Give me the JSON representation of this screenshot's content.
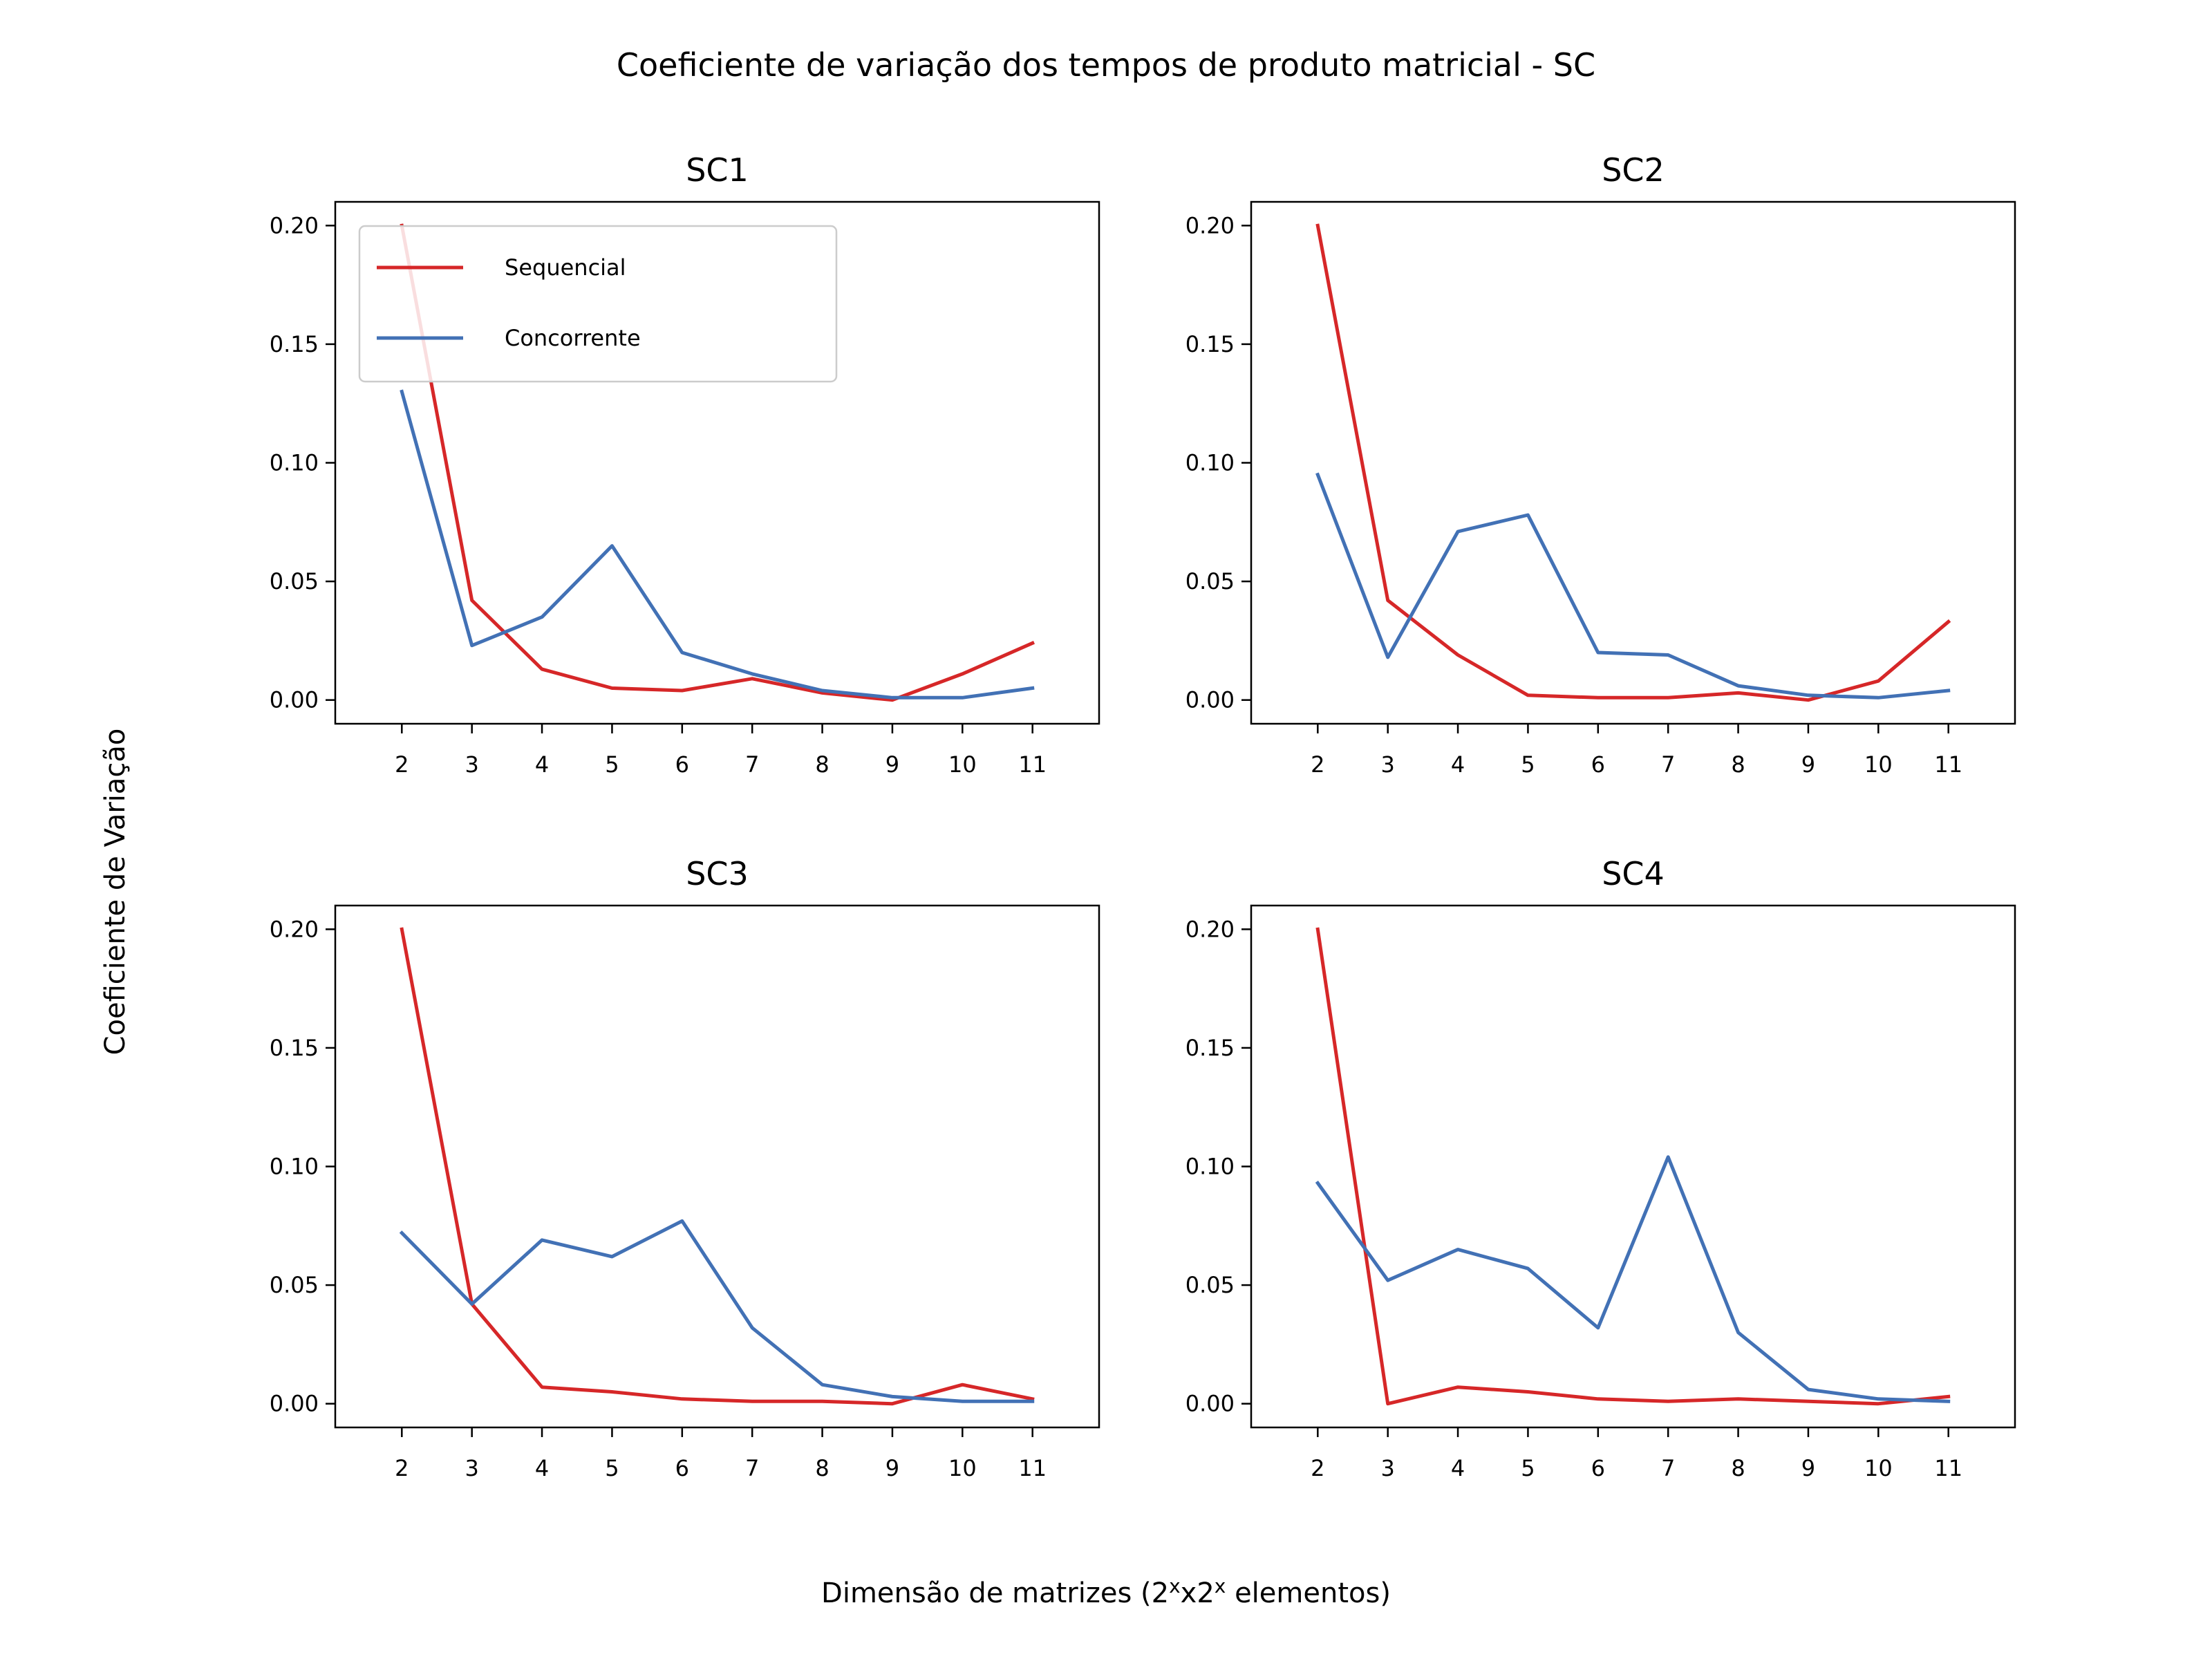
{
  "figure": {
    "title": "Coeficiente de variação dos tempos de produto matricial - SC",
    "ylabel": "Coeficiente de Variação",
    "xlabel": {
      "prefix": "Dimensão de matrizes (2",
      "sup1": "x",
      "mid": "x2",
      "sup2": "x",
      "suffix": " elementos)"
    }
  },
  "colors": {
    "Sequencial": "#d62728",
    "Concorrente": "#4271b5"
  },
  "chart_data": [
    {
      "type": "line",
      "title": "SC1",
      "x": [
        2,
        3,
        4,
        5,
        6,
        7,
        8,
        9,
        10,
        11
      ],
      "ylim": [
        -0.01,
        0.21
      ],
      "yticks": [
        "0.00",
        "0.05",
        "0.10",
        "0.15",
        "0.20"
      ],
      "legend": "upper-left",
      "series": [
        {
          "name": "Sequencial",
          "values": [
            0.2,
            0.042,
            0.013,
            0.005,
            0.004,
            0.009,
            0.003,
            0.0,
            0.011,
            0.024
          ]
        },
        {
          "name": "Concorrente",
          "values": [
            0.13,
            0.023,
            0.035,
            0.065,
            0.02,
            0.011,
            0.004,
            0.001,
            0.001,
            0.005
          ]
        }
      ]
    },
    {
      "type": "line",
      "title": "SC2",
      "x": [
        2,
        3,
        4,
        5,
        6,
        7,
        8,
        9,
        10,
        11
      ],
      "ylim": [
        -0.01,
        0.21
      ],
      "yticks": [
        "0.00",
        "0.05",
        "0.10",
        "0.15",
        "0.20"
      ],
      "series": [
        {
          "name": "Sequencial",
          "values": [
            0.2,
            0.042,
            0.019,
            0.002,
            0.001,
            0.001,
            0.003,
            0.0,
            0.008,
            0.033
          ]
        },
        {
          "name": "Concorrente",
          "values": [
            0.095,
            0.018,
            0.071,
            0.078,
            0.02,
            0.019,
            0.006,
            0.002,
            0.001,
            0.004
          ]
        }
      ]
    },
    {
      "type": "line",
      "title": "SC3",
      "x": [
        2,
        3,
        4,
        5,
        6,
        7,
        8,
        9,
        10,
        11
      ],
      "ylim": [
        -0.01,
        0.21
      ],
      "yticks": [
        "0.00",
        "0.05",
        "0.10",
        "0.15",
        "0.20"
      ],
      "series": [
        {
          "name": "Sequencial",
          "values": [
            0.2,
            0.042,
            0.007,
            0.005,
            0.002,
            0.001,
            0.001,
            0.0,
            0.008,
            0.002
          ]
        },
        {
          "name": "Concorrente",
          "values": [
            0.072,
            0.042,
            0.069,
            0.062,
            0.077,
            0.032,
            0.008,
            0.003,
            0.001,
            0.001
          ]
        }
      ]
    },
    {
      "type": "line",
      "title": "SC4",
      "x": [
        2,
        3,
        4,
        5,
        6,
        7,
        8,
        9,
        10,
        11
      ],
      "ylim": [
        -0.01,
        0.21
      ],
      "yticks": [
        "0.00",
        "0.05",
        "0.10",
        "0.15",
        "0.20"
      ],
      "series": [
        {
          "name": "Sequencial",
          "values": [
            0.2,
            0.0,
            0.007,
            0.005,
            0.002,
            0.001,
            0.002,
            0.001,
            0.0,
            0.003
          ]
        },
        {
          "name": "Concorrente",
          "values": [
            0.093,
            0.052,
            0.065,
            0.057,
            0.032,
            0.104,
            0.03,
            0.006,
            0.002,
            0.001
          ]
        }
      ]
    }
  ]
}
